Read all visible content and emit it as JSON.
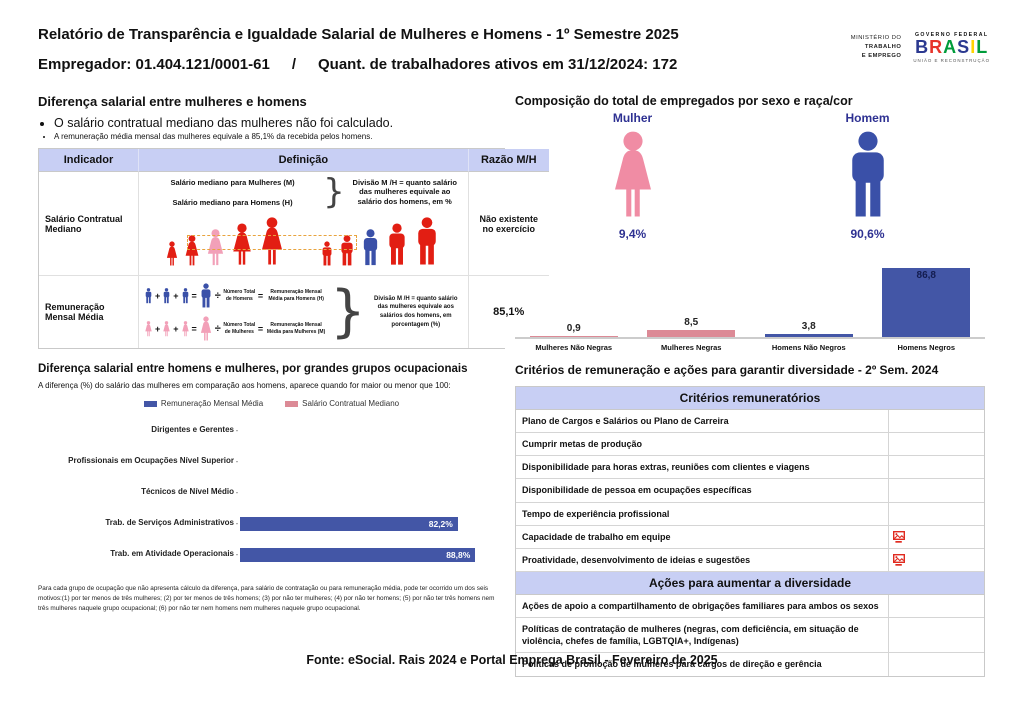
{
  "page": {
    "footer": "Fonte: eSocial. Rais 2024 e Portal Emprega Brasil - Fevereiro de 2025"
  },
  "header": {
    "title": "Relatório de Transparência e Igualdade Salarial de Mulheres e Homens - 1º Semestre 2025",
    "employer": "Empregador: 01.404.121/0001-61",
    "separator": "/",
    "active_workers": "Quant. de trabalhadores ativos em 31/12/2024: 172",
    "ministry": {
      "line1": "MINISTÉRIO DO",
      "line2": "TRABALHO",
      "line3": "E EMPREGO"
    },
    "gov": {
      "top": "GOVERNO FEDERAL",
      "brand": "BRASIL",
      "bottom": "UNIÃO E RECONSTRUÇÃO"
    }
  },
  "glyphs": {
    "brace": "}",
    "plus": "+",
    "equals": "=",
    "divide": "÷",
    "tick": "-"
  },
  "pay_gap": {
    "title": "Diferença salarial entre mulheres e homens",
    "bullet_primary": "O salário contratual mediano das mulheres não foi calculado.",
    "bullet_secondary": "A remuneração média mensal das mulheres equivale a 85,1% da recebida pelos homens.",
    "table": {
      "headers": [
        "Indicador",
        "Definição",
        "Razão M/H"
      ],
      "rows": [
        {
          "indicator": "Salário Contratual Mediano",
          "definition": {
            "label_women": "Salário mediano para Mulheres (M)",
            "label_men": "Salário mediano para Homens (H)",
            "formula": "Divisão M /H = quanto salário das mulheres equivale ao salário dos homens, em %",
            "pictogram": {
              "women": [
                "red",
                "red",
                "pink",
                "red",
                "red"
              ],
              "men": [
                "red",
                "red",
                "blue",
                "red",
                "red"
              ]
            }
          },
          "ratio": "Não existente no exercício"
        },
        {
          "indicator": "Remuneração Mensal Média",
          "definition": {
            "equations": [
              {
                "sex": "m",
                "color": "blue",
                "divisor": "Número Total de Homens",
                "result": "Remuneração Mensal Média para Homens (H)"
              },
              {
                "sex": "f",
                "color": "pink",
                "divisor": "Número Total de Mulheres",
                "result": "Remuneração Mensal Média para Mulheres (M)"
              }
            ],
            "formula": "Divisão M /H = quanto salário das mulheres equivale aos salários dos homens, em porcentagem (%)"
          },
          "ratio": "85,1%"
        }
      ]
    }
  },
  "composition": {
    "title": "Composição do total de empregados por sexo e raça/cor",
    "sexes": [
      {
        "label": "Mulher",
        "pct": "9,4%",
        "sex": "f",
        "color": "#F08CA4"
      },
      {
        "label": "Homem",
        "pct": "90,6%",
        "sex": "m",
        "color": "#3A50A8"
      }
    ]
  },
  "occupational": {
    "title": "Diferença salarial entre homens e mulheres, por grandes grupos ocupacionais",
    "subtitle": "A diferença (%) do salário das mulheres em comparação aos homens, aparece quando for maior ou menor que 100:",
    "footnote": "Para cada grupo de ocupação que não apresenta cálculo da diferença, para salário de contratação ou para remuneração média, pode ter ocorrido um dos seis motivos:(1) por ter menos de três mulheres; (2) por ter menos de três homens; (3) por não ter mulheres; (4) por não ter homens; (5) por não ter três homens nem três mulheres naquele grupo ocupacional; (6) por não ter nem homens nem mulheres naquele grupo ocupacional."
  },
  "criteria": {
    "title": "Critérios de remuneração e ações para garantir diversidade - 2º Sem. 2024",
    "groups": [
      {
        "header": "Critérios remuneratórios",
        "rows": [
          {
            "label": "Plano de Cargos e Salários ou Plano de Carreira",
            "marked": false
          },
          {
            "label": "Cumprir metas de produção",
            "marked": false
          },
          {
            "label": "Disponibilidade para horas extras, reuniões com clientes e viagens",
            "marked": false
          },
          {
            "label": "Disponibilidade de pessoa em ocupações específicas",
            "marked": false
          },
          {
            "label": "Tempo de experiência profissional",
            "marked": false
          },
          {
            "label": "Capacidade de trabalho em equipe",
            "marked": true
          },
          {
            "label": "Proatividade, desenvolvimento de ideias e sugestões",
            "marked": true
          }
        ]
      },
      {
        "header": "Ações para aumentar a diversidade",
        "rows": [
          {
            "label": "Ações de apoio a compartilhamento de obrigações familiares para ambos os sexos",
            "marked": false
          },
          {
            "label": "Políticas de contratação de mulheres (negras, com deficiência, em situação de violência, chefes de família, LGBTQIA+, Indígenas)",
            "marked": false
          },
          {
            "label": "Políticas de promoção de mulheres para cargos de direção e gerência",
            "marked": false
          }
        ]
      }
    ]
  },
  "chart_data": [
    {
      "id": "composition",
      "type": "bar",
      "title": "Composição do total de empregados por sexo e raça/cor",
      "categories": [
        "Mulheres Não Negras",
        "Mulheres Negras",
        "Homens Não Negros",
        "Homens Negros"
      ],
      "values": [
        0.9,
        8.5,
        3.8,
        86.8
      ],
      "value_labels": [
        "0,9",
        "8,5",
        "3,8",
        "86,8"
      ],
      "bar_colors": [
        "#DC8A96",
        "#DC8A96",
        "#4356A6",
        "#4356A6"
      ],
      "ylim": [
        0,
        100
      ],
      "unit": "%",
      "grid": false
    },
    {
      "id": "occupational",
      "type": "bar-horizontal",
      "title": "Diferença salarial entre homens e mulheres, por grandes grupos ocupacionais",
      "categories": [
        "Dirigentes e Gerentes",
        "Profissionais em Ocupações Nível Superior",
        "Técnicos de Nível Médio",
        "Trab. de Serviços Administrativos",
        "Trab. em Atividade Operacionais"
      ],
      "series": [
        {
          "name": "Remuneração Mensal Média",
          "color": "#4356A6",
          "values": [
            null,
            null,
            null,
            82.2,
            88.8
          ],
          "value_labels": [
            "",
            "",
            "",
            "82,2%",
            "88,8%"
          ]
        },
        {
          "name": "Salário Contratual Mediano",
          "color": "#DC8A96",
          "values": [
            null,
            null,
            null,
            null,
            null
          ],
          "value_labels": [
            "",
            "",
            "",
            "",
            ""
          ]
        }
      ],
      "xlim": [
        0,
        100
      ],
      "legend_position": "top",
      "grid": false
    }
  ],
  "colors": {
    "chart_blue": "#4356A6",
    "chart_pink": "#DC8A96",
    "person_red": "#E21E13",
    "person_pink": "#F2A0B8",
    "person_blue": "#3A50A8",
    "navy_label": "#2E3192",
    "table_header_bg": "#C8CFF4",
    "marked_icon_red": "#E02B20",
    "gov_brand_letters": [
      "#2B3990",
      "#E6332A",
      "#009C3B",
      "#2B3990",
      "#FFD400",
      "#009C3B"
    ]
  }
}
